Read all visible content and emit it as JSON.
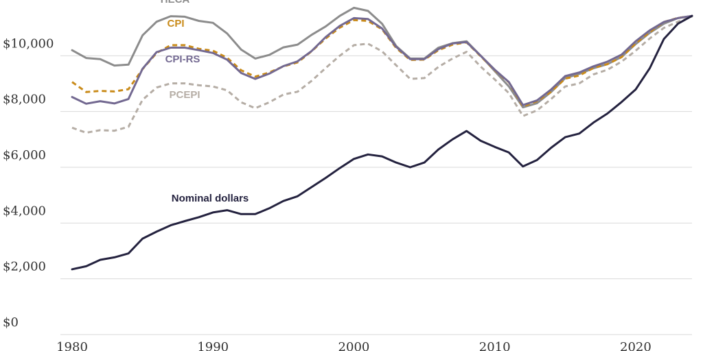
{
  "chart_data": {
    "type": "line",
    "xlim": [
      1980,
      2024
    ],
    "ylim": [
      0,
      12000
    ],
    "grid": true,
    "y_ticks": [
      {
        "value": 0,
        "label": "$0"
      },
      {
        "value": 2000,
        "label": "$2,000"
      },
      {
        "value": 4000,
        "label": "$4,000"
      },
      {
        "value": 6000,
        "label": "$6,000"
      },
      {
        "value": 8000,
        "label": "$8,000"
      },
      {
        "value": 10000,
        "label": "$10,000"
      }
    ],
    "x_ticks": [
      {
        "value": 1980,
        "label": "1980"
      },
      {
        "value": 1990,
        "label": "1990"
      },
      {
        "value": 2000,
        "label": "2000"
      },
      {
        "value": 2010,
        "label": "2010"
      },
      {
        "value": 2020,
        "label": "2020"
      }
    ],
    "x": [
      1980,
      1981,
      1982,
      1983,
      1984,
      1985,
      1986,
      1987,
      1988,
      1989,
      1990,
      1991,
      1992,
      1993,
      1994,
      1995,
      1996,
      1997,
      1998,
      1999,
      2000,
      2001,
      2002,
      2003,
      2004,
      2005,
      2006,
      2007,
      2008,
      2009,
      2010,
      2011,
      2012,
      2013,
      2014,
      2015,
      2016,
      2017,
      2018,
      2019,
      2020,
      2021,
      2022,
      2023,
      2024
    ],
    "series": [
      {
        "name": "HECA",
        "color": "#8c8c8c",
        "dash": "solid",
        "values": [
          10200,
          9920,
          9880,
          9650,
          9680,
          10730,
          11220,
          11420,
          11400,
          11250,
          11180,
          10800,
          10220,
          9900,
          10030,
          10300,
          10400,
          10750,
          11050,
          11430,
          11720,
          11610,
          11150,
          10350,
          9900,
          9900,
          10290,
          10450,
          10520,
          10000,
          9450,
          8900,
          8150,
          8300,
          8700,
          9200,
          9350,
          9550,
          9700,
          9960,
          10420,
          10820,
          11150,
          11350,
          11430
        ]
      },
      {
        "name": "CPI",
        "color": "#c98b1a",
        "dash": "dashed",
        "values": [
          9060,
          8700,
          8740,
          8720,
          8800,
          9520,
          10100,
          10380,
          10380,
          10250,
          10180,
          9930,
          9480,
          9250,
          9400,
          9620,
          9760,
          10160,
          10620,
          11010,
          11280,
          11250,
          10950,
          10280,
          9850,
          9860,
          10200,
          10400,
          10480,
          9980,
          9480,
          9050,
          8180,
          8370,
          8710,
          9180,
          9290,
          9560,
          9700,
          9950,
          10440,
          10850,
          11210,
          11360,
          11420
        ]
      },
      {
        "name": "CPI-RS",
        "color": "#736991",
        "dash": "solid",
        "values": [
          8520,
          8280,
          8370,
          8290,
          8450,
          9530,
          10130,
          10290,
          10290,
          10200,
          10100,
          9860,
          9380,
          9170,
          9360,
          9630,
          9800,
          10170,
          10670,
          11070,
          11350,
          11320,
          10980,
          10320,
          9880,
          9880,
          10240,
          10440,
          10490,
          10000,
          9500,
          9060,
          8230,
          8400,
          8790,
          9270,
          9400,
          9620,
          9790,
          10040,
          10520,
          10910,
          11210,
          11350,
          11430
        ]
      },
      {
        "name": "PCEPI",
        "color": "#b5ada5",
        "dash": "dashed",
        "values": [
          7420,
          7240,
          7330,
          7310,
          7450,
          8420,
          8860,
          9010,
          9010,
          8940,
          8900,
          8760,
          8330,
          8120,
          8330,
          8610,
          8710,
          9100,
          9560,
          10000,
          10380,
          10430,
          10160,
          9660,
          9170,
          9200,
          9600,
          9900,
          10140,
          9610,
          9150,
          8660,
          7840,
          8040,
          8450,
          8900,
          9010,
          9330,
          9500,
          9790,
          10180,
          10620,
          11000,
          11220,
          11400
        ]
      },
      {
        "name": "Nominal dollars",
        "color": "#24223f",
        "dash": "solid",
        "values": [
          2340,
          2450,
          2680,
          2770,
          2910,
          3440,
          3690,
          3920,
          4070,
          4210,
          4380,
          4460,
          4320,
          4320,
          4530,
          4790,
          4960,
          5290,
          5620,
          5970,
          6300,
          6460,
          6390,
          6170,
          6000,
          6170,
          6640,
          7000,
          7300,
          6950,
          6730,
          6530,
          6030,
          6260,
          6700,
          7080,
          7210,
          7600,
          7930,
          8340,
          8790,
          9550,
          10600,
          11150,
          11430
        ]
      }
    ]
  }
}
